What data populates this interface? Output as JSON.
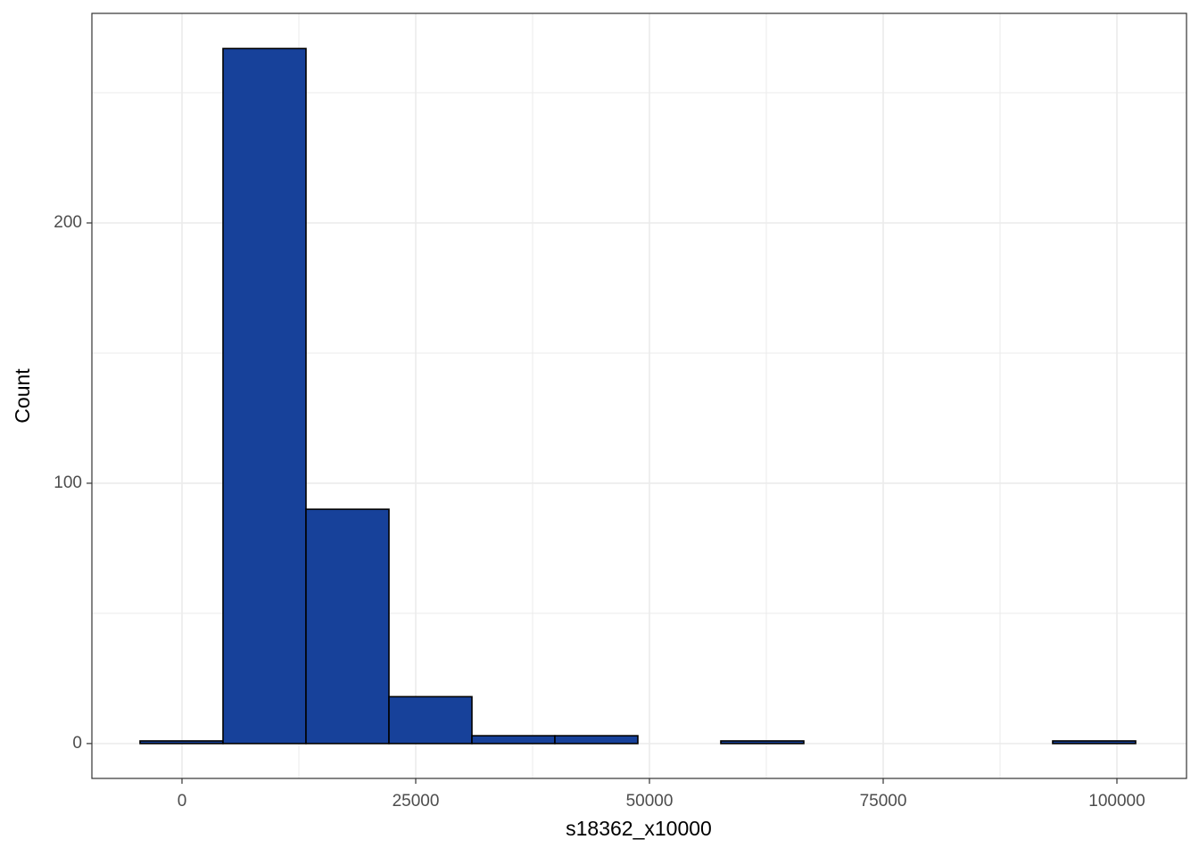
{
  "chart_data": {
    "type": "histogram",
    "x_label": "s18362_x10000",
    "y_label": "Count",
    "bins": [
      -4485,
      4389,
      13263,
      22137,
      31011,
      39885,
      48759,
      57633,
      66507,
      75381,
      84255,
      93129,
      102003
    ],
    "values": [
      1,
      267,
      90,
      18,
      3,
      3,
      0,
      1,
      0,
      0,
      0,
      1
    ],
    "color": "#17419a",
    "xlim": [
      -9637,
      107443
    ],
    "xticks": [
      0,
      25000,
      50000,
      75000,
      100000
    ],
    "ylim": [
      -13.4,
      280.5
    ],
    "yticks": [
      0,
      100,
      200
    ],
    "grid": true
  }
}
